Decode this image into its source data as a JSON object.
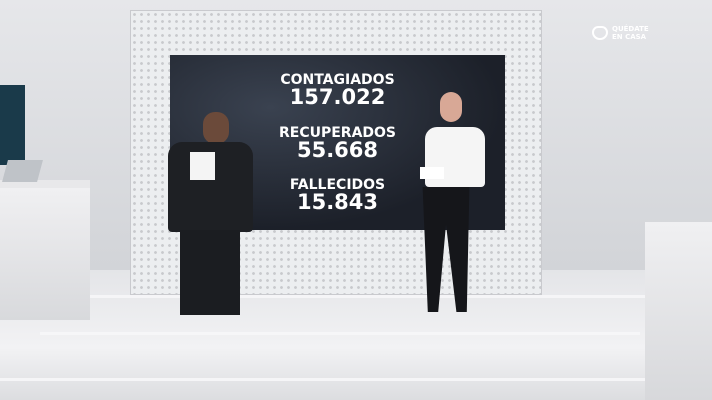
{
  "screen": {
    "items": [
      {
        "label": "CONTAGIADOS",
        "value": "157.022"
      },
      {
        "label": "RECUPERADOS",
        "value": "55.668"
      },
      {
        "label": "FALLECIDOS",
        "value": "15.843"
      }
    ]
  },
  "logo": {
    "line1": "QUÉDATE",
    "line2": "EN CASA",
    "icon": "heart-house-icon"
  },
  "colors": {
    "screen": "#1f242d",
    "set": "#e6e7ea"
  }
}
